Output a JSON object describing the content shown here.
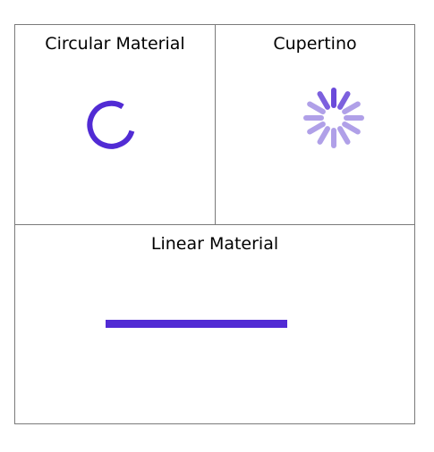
{
  "panels": {
    "circular": {
      "title": "Circular Material"
    },
    "cupertino": {
      "title": "Cupertino"
    },
    "linear": {
      "title": "Linear Material"
    }
  },
  "colors": {
    "accent": "#512BD4",
    "accent_light": "#B0A0E8",
    "border": "#7A7A7A"
  },
  "icons": {
    "circular": "circular-progress-icon",
    "cupertino": "activity-indicator-icon",
    "linear": "linear-progress-icon"
  }
}
